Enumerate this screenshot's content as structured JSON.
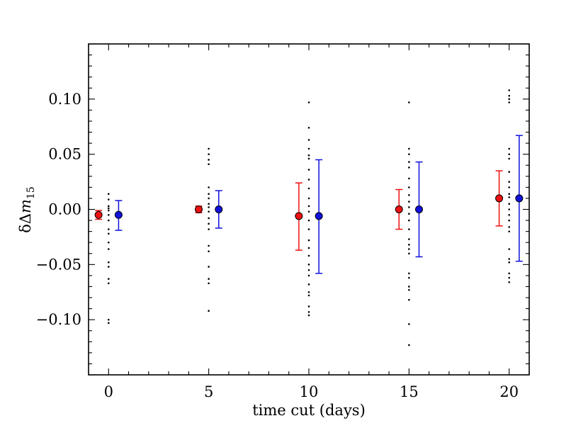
{
  "chart_data": {
    "type": "scatter",
    "title": "",
    "xlabel": "time cut (days)",
    "ylabel": {
      "prefix": "δΔ",
      "m": "m",
      "sub": "15"
    },
    "xlim": [
      -1,
      21
    ],
    "ylim": [
      -0.15,
      0.15
    ],
    "xticks": [
      0,
      5,
      10,
      15,
      20
    ],
    "xtick_labels": [
      "0",
      "5",
      "10",
      "15",
      "20"
    ],
    "yticks": [
      -0.1,
      -0.05,
      0.0,
      0.05,
      0.1
    ],
    "ytick_labels": [
      "−0.10",
      "−0.05",
      "0.00",
      "0.05",
      "0.10"
    ],
    "grid": false,
    "series": [
      {
        "name": "red",
        "color": "#ee1111",
        "x": [
          -0.5,
          4.5,
          9.5,
          14.5,
          19.5
        ],
        "y": [
          -0.005,
          0.0,
          -0.006,
          0.0,
          0.01
        ],
        "err_low": [
          0.004,
          0.003,
          0.031,
          0.018,
          0.025
        ],
        "err_high": [
          0.004,
          0.003,
          0.03,
          0.018,
          0.025
        ]
      },
      {
        "name": "blue",
        "color": "#1111dd",
        "x": [
          0.5,
          5.5,
          10.5,
          15.5,
          20.5
        ],
        "y": [
          -0.005,
          0.0,
          -0.006,
          0.0,
          0.01
        ],
        "err_low": [
          0.014,
          0.017,
          0.052,
          0.043,
          0.057
        ],
        "err_high": [
          0.013,
          0.017,
          0.051,
          0.043,
          0.057
        ]
      }
    ],
    "sample_points": [
      {
        "x": 0,
        "y": [
          0.014,
          0.009,
          0.003,
          0.001,
          -0.001,
          -0.005,
          -0.01,
          -0.018,
          -0.022,
          -0.03,
          -0.036,
          -0.048,
          -0.052,
          -0.063,
          -0.067,
          -0.1,
          -0.103
        ]
      },
      {
        "x": 5,
        "y": [
          0.055,
          0.05,
          0.045,
          0.041,
          0.02,
          0.014,
          0.01,
          0.005,
          0.002,
          -0.002,
          -0.008,
          -0.013,
          -0.018,
          -0.033,
          -0.038,
          -0.052,
          -0.063,
          -0.067,
          -0.092
        ]
      },
      {
        "x": 10,
        "y": [
          0.097,
          0.074,
          0.063,
          0.055,
          0.049,
          0.046,
          0.036,
          0.027,
          0.019,
          0.01,
          0.003,
          -0.002,
          -0.01,
          -0.018,
          -0.028,
          -0.035,
          -0.042,
          -0.05,
          -0.055,
          -0.06,
          -0.068,
          -0.075,
          -0.078,
          -0.088,
          -0.093,
          -0.096
        ]
      },
      {
        "x": 15,
        "y": [
          0.097,
          0.055,
          0.05,
          0.043,
          0.038,
          0.028,
          0.02,
          0.013,
          0.007,
          0.002,
          -0.004,
          -0.01,
          -0.018,
          -0.027,
          -0.032,
          -0.036,
          -0.04,
          -0.058,
          -0.062,
          -0.07,
          -0.073,
          -0.082,
          -0.104,
          -0.123
        ]
      },
      {
        "x": 20,
        "y": [
          0.108,
          0.103,
          0.1,
          0.097,
          0.055,
          0.05,
          0.046,
          0.034,
          0.025,
          0.02,
          0.014,
          0.011,
          0.005,
          0.0,
          -0.005,
          -0.01,
          -0.016,
          -0.02,
          -0.036,
          -0.045,
          -0.048,
          -0.058,
          -0.062,
          -0.066
        ]
      }
    ]
  }
}
